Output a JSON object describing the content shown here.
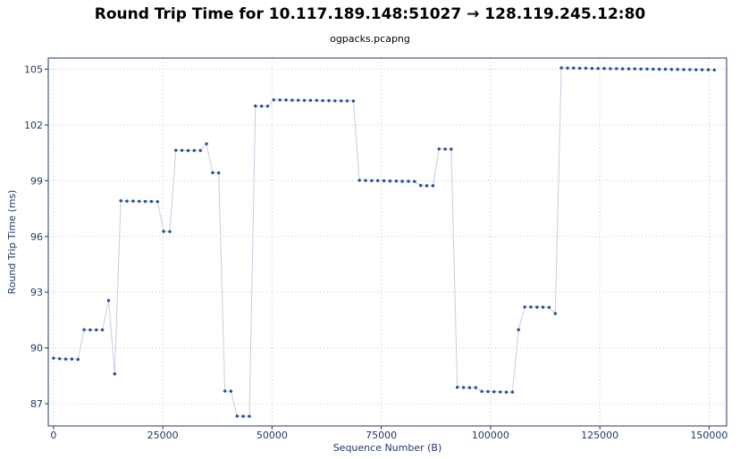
{
  "chart_data": {
    "type": "line",
    "title": "Round Trip Time for 10.117.189.148:51027 → 128.119.245.12:80",
    "subtitle": "ogpacks.pcapng",
    "xlabel": "Sequence Number (B)",
    "ylabel": "Round Trip Time (ms)",
    "xlim": [
      -1200,
      154000
    ],
    "ylim": [
      85.8,
      105.6
    ],
    "x_ticks": [
      0,
      25000,
      50000,
      75000,
      100000,
      125000,
      150000
    ],
    "y_ticks": [
      87,
      90,
      93,
      96,
      99,
      102,
      105
    ],
    "grid": true,
    "colors": {
      "line": "#c8cde3",
      "point": "#23508f",
      "axis": "#1f3864",
      "grid": "#c4c4c4"
    },
    "series": [
      {
        "x": [
          0,
          1400,
          2800,
          4200,
          5600,
          7000,
          8400,
          9800,
          11200,
          12600,
          14000,
          15400,
          16800,
          18200,
          19600,
          21000,
          22400,
          23800,
          25200,
          26600,
          28000,
          29400,
          30800,
          32200,
          33600,
          35000,
          36400,
          37800,
          39200,
          40600,
          42000,
          43400,
          44800,
          46200,
          47600,
          49000,
          50400,
          51800,
          53200,
          54600,
          56000,
          57400,
          58800,
          60200,
          61600,
          63000,
          64400,
          65800,
          67200,
          68600,
          70000,
          71400,
          72800,
          74200,
          75600,
          77000,
          78400,
          79800,
          81200,
          82600,
          84000,
          85400,
          86800,
          88200,
          89600,
          91000,
          92400,
          93800,
          95200,
          96600,
          98000,
          99400,
          100800,
          102200,
          103600,
          105000,
          106400,
          107800,
          109200,
          110600,
          112000,
          113400,
          114800,
          116200,
          117600,
          119000,
          120400,
          121800,
          123200,
          124600,
          126000,
          127400,
          128800,
          130200,
          131600,
          133000,
          134400,
          135800,
          137200,
          138600,
          140000,
          141400,
          142800,
          144200,
          145600,
          147000,
          148400,
          149800,
          151200
        ],
        "y": [
          89.45,
          89.42,
          89.4,
          89.4,
          89.38,
          90.98,
          90.97,
          90.97,
          90.97,
          92.55,
          88.6,
          97.92,
          97.9,
          97.9,
          97.89,
          97.88,
          97.88,
          97.87,
          96.27,
          96.26,
          100.64,
          100.63,
          100.62,
          100.62,
          100.62,
          100.98,
          99.43,
          99.42,
          87.68,
          87.67,
          86.33,
          86.32,
          86.32,
          103.02,
          103.01,
          103.01,
          103.35,
          103.34,
          103.34,
          103.33,
          103.33,
          103.32,
          103.32,
          103.32,
          103.31,
          103.31,
          103.3,
          103.3,
          103.3,
          103.29,
          99.02,
          99.01,
          99.0,
          99.0,
          98.99,
          98.98,
          98.98,
          98.97,
          98.97,
          98.96,
          98.74,
          98.73,
          98.73,
          100.71,
          100.7,
          100.7,
          87.88,
          87.87,
          87.86,
          87.86,
          87.66,
          87.65,
          87.64,
          87.63,
          87.62,
          87.62,
          90.98,
          92.2,
          92.2,
          92.19,
          92.19,
          92.18,
          91.85,
          105.07,
          105.06,
          105.06,
          105.05,
          105.05,
          105.04,
          105.04,
          105.04,
          105.03,
          105.03,
          105.02,
          105.02,
          105.02,
          105.01,
          105.01,
          105.0,
          105.0,
          105.0,
          104.99,
          104.99,
          104.98,
          104.98,
          104.97,
          104.97,
          104.97,
          104.96
        ]
      }
    ]
  }
}
